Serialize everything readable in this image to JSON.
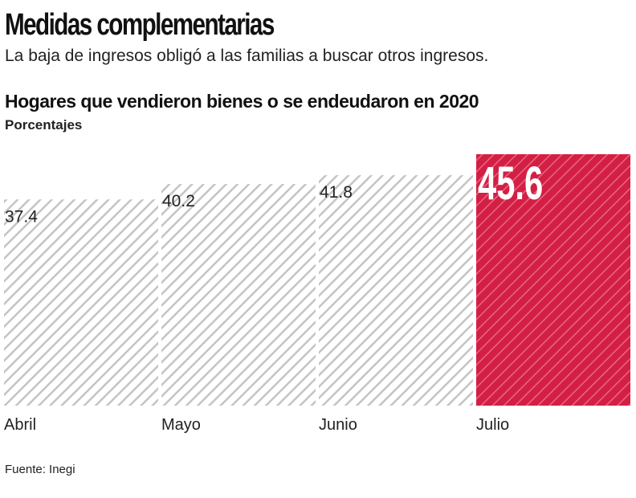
{
  "header": {
    "title": "Medidas complementarias",
    "subtitle": "La baja de ingresos obligó a las familias a buscar otros ingresos."
  },
  "chart_data": {
    "type": "bar",
    "title": "Hogares que vendieron bienes o se endeudaron en 2020",
    "ylabel": "Porcentajes",
    "categories": [
      "Abril",
      "Mayo",
      "Junio",
      "Julio"
    ],
    "values": [
      37.4,
      40.2,
      41.8,
      45.6
    ],
    "data_labels": [
      "37.4",
      "40.2",
      "41.8",
      "45.6"
    ],
    "ylim": [
      0,
      45.6
    ],
    "grid": false,
    "colors": {
      "default": "#ffffff",
      "default_hatch": "#c4c4c4",
      "highlight": "#d41f45",
      "highlight_hatch": "#e8677f"
    },
    "highlight_index": 3
  },
  "footer": {
    "source": "Fuente: Inegi"
  }
}
